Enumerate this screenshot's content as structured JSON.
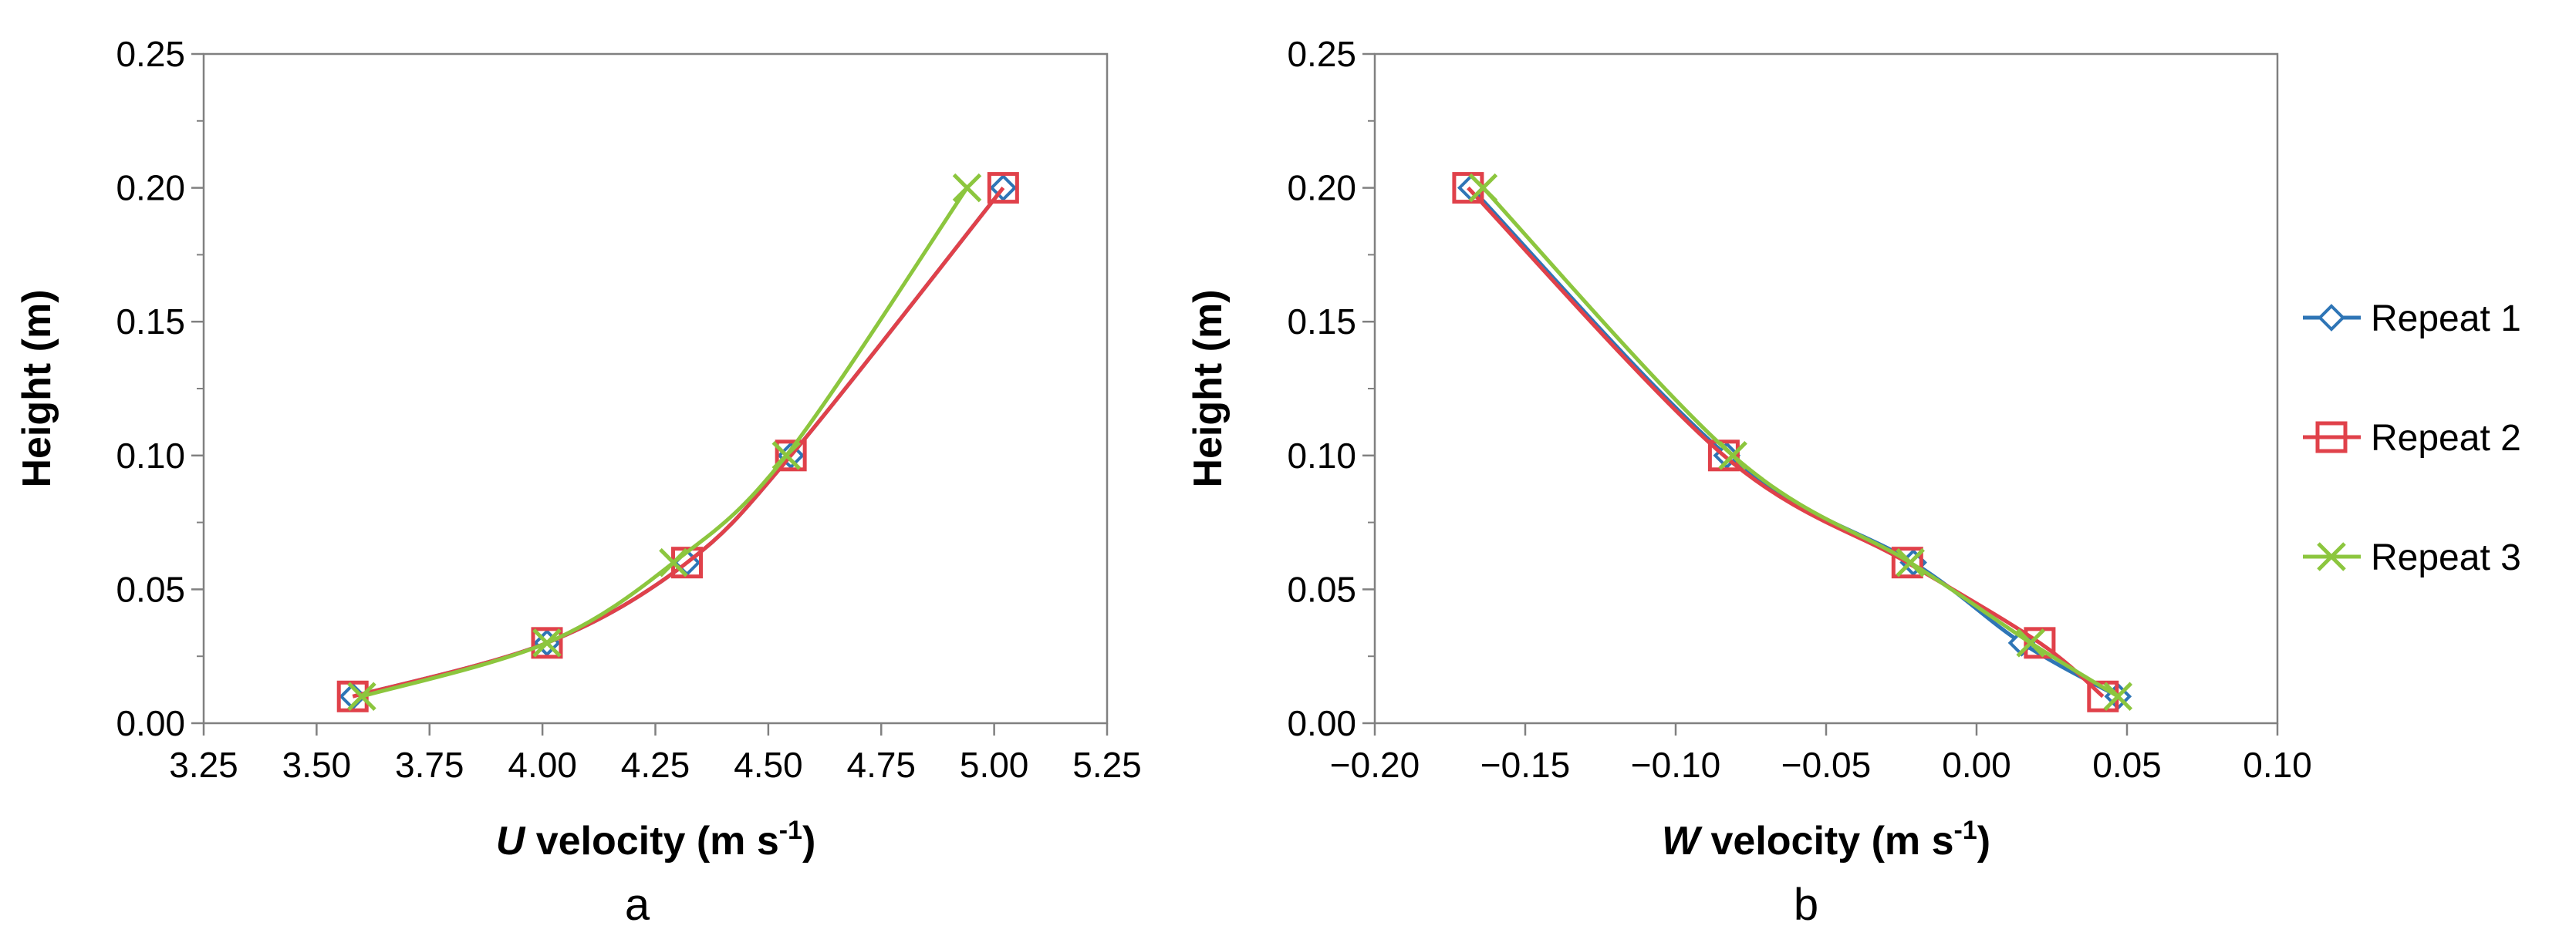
{
  "chart_data": [
    {
      "type": "line",
      "panel_label": "a",
      "xlabel": {
        "var": "U",
        "text": " velocity (m s",
        "sup": "-1",
        "end": ")"
      },
      "ylabel": "Height (m)",
      "xlim": [
        3.25,
        5.25
      ],
      "ylim": [
        0,
        0.25
      ],
      "xticks": [
        "3.25",
        "3.50",
        "3.75",
        "4.00",
        "4.25",
        "4.50",
        "4.75",
        "5.00",
        "5.25"
      ],
      "yticks": [
        "0.00",
        "0.05",
        "0.10",
        "0.15",
        "0.20",
        "0.25"
      ],
      "series": [
        {
          "name": "Repeat 1",
          "points": [
            [
              3.58,
              0.01
            ],
            [
              4.01,
              0.03
            ],
            [
              4.32,
              0.06
            ],
            [
              4.55,
              0.1
            ],
            [
              5.02,
              0.2
            ]
          ]
        },
        {
          "name": "Repeat 2",
          "points": [
            [
              3.58,
              0.01
            ],
            [
              4.01,
              0.03
            ],
            [
              4.32,
              0.06
            ],
            [
              4.55,
              0.1
            ],
            [
              5.02,
              0.2
            ]
          ]
        },
        {
          "name": "Repeat 3",
          "points": [
            [
              3.6,
              0.01
            ],
            [
              4.01,
              0.03
            ],
            [
              4.29,
              0.06
            ],
            [
              4.54,
              0.1
            ],
            [
              4.94,
              0.2
            ]
          ]
        }
      ]
    },
    {
      "type": "line",
      "panel_label": "b",
      "xlabel": {
        "var": "W",
        "text": " velocity (m s",
        "sup": "-1",
        "end": ")"
      },
      "ylabel": "Height (m)",
      "xlim": [
        -0.2,
        0.1
      ],
      "ylim": [
        0,
        0.25
      ],
      "xticks": [
        "−0.20",
        "−0.15",
        "−0.10",
        "−0.05",
        "0.00",
        "0.05",
        "0.10"
      ],
      "yticks": [
        "0.00",
        "0.05",
        "0.10",
        "0.15",
        "0.20",
        "0.25"
      ],
      "series": [
        {
          "name": "Repeat 1",
          "points": [
            [
              0.047,
              0.01
            ],
            [
              0.015,
              0.03
            ],
            [
              -0.021,
              0.06
            ],
            [
              -0.083,
              0.1
            ],
            [
              -0.168,
              0.2
            ]
          ]
        },
        {
          "name": "Repeat 2",
          "points": [
            [
              0.042,
              0.01
            ],
            [
              0.021,
              0.03
            ],
            [
              -0.023,
              0.06
            ],
            [
              -0.084,
              0.1
            ],
            [
              -0.169,
              0.2
            ]
          ]
        },
        {
          "name": "Repeat 3",
          "points": [
            [
              0.047,
              0.01
            ],
            [
              0.018,
              0.03
            ],
            [
              -0.022,
              0.06
            ],
            [
              -0.081,
              0.1
            ],
            [
              -0.164,
              0.2
            ]
          ]
        }
      ]
    }
  ],
  "legend": {
    "entries": [
      "Repeat 1",
      "Repeat 2",
      "Repeat 3"
    ],
    "placement": "right"
  },
  "colors": {
    "Repeat 1": "#2E75B6",
    "Repeat 2": "#E0414A",
    "Repeat 3": "#8CC63E",
    "axis": "#808080"
  },
  "markers": {
    "Repeat 1": "diamond",
    "Repeat 2": "square",
    "Repeat 3": "x"
  }
}
